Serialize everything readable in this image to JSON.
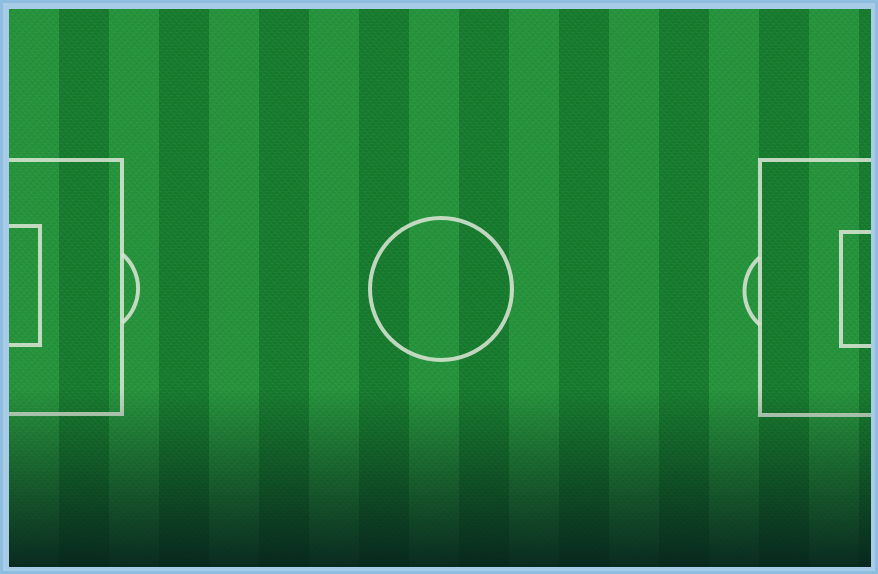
{
  "scene": {
    "name": "football pitch",
    "colors": {
      "grass_light": "#24923a",
      "grass_dark": "#157a2c",
      "line": "#d7e4d3",
      "frame": "#8fbde0"
    },
    "icons": [
      "center-circle",
      "penalty-area",
      "goal-area",
      "penalty-arc"
    ]
  }
}
